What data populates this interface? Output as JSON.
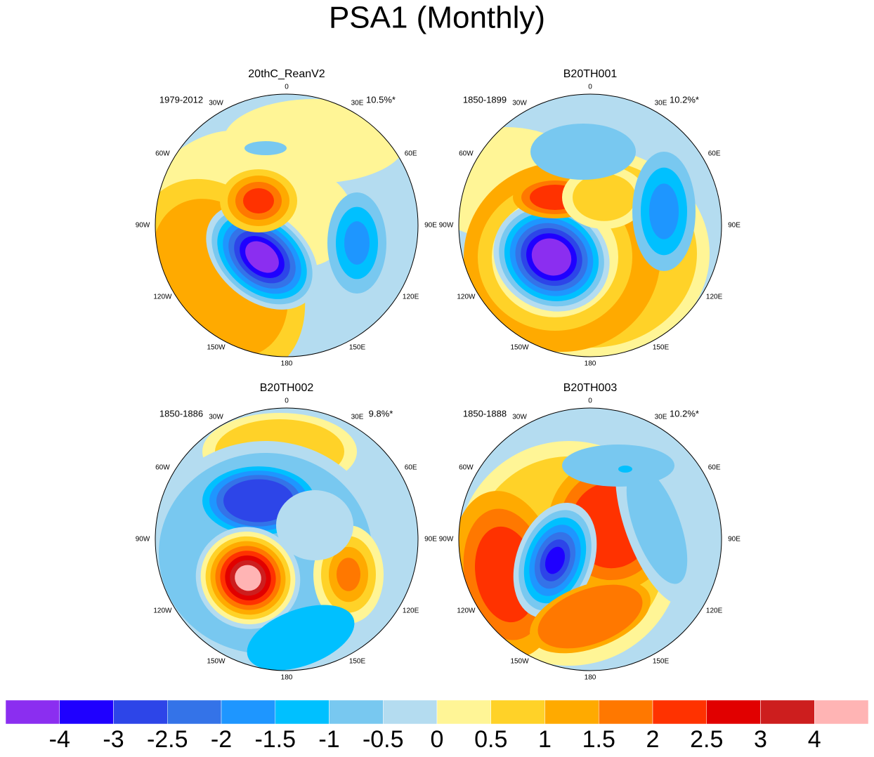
{
  "title": "PSA1 (Monthly)",
  "longitudes": [
    "0",
    "30E",
    "60E",
    "90E",
    "120E",
    "150E",
    "180",
    "150W",
    "120W",
    "90W",
    "60W",
    "30W"
  ],
  "panels": [
    {
      "title": "20thC_ReanV2",
      "period": "1979-2012",
      "variance": "10.5%*"
    },
    {
      "title": "B20TH001",
      "period": "1850-1899",
      "variance": "10.2%*"
    },
    {
      "title": "B20TH002",
      "period": "1850-1886",
      "variance": "9.8%*"
    },
    {
      "title": "B20TH003",
      "period": "1850-1888",
      "variance": "10.2%*"
    }
  ],
  "colorbar": {
    "levels": [
      -4,
      -3,
      -2.5,
      -2,
      -1.5,
      -1,
      -0.5,
      0,
      0.5,
      1,
      1.5,
      2,
      2.5,
      3,
      4
    ],
    "colors": [
      "#8b2ef0",
      "#1f00ff",
      "#2d45e8",
      "#3473e8",
      "#1e96ff",
      "#00c0ff",
      "#78c8f0",
      "#b4dcf0",
      "#fff596",
      "#ffd228",
      "#ffaa00",
      "#ff7800",
      "#ff3200",
      "#e10000",
      "#cd1e1e",
      "#ffb4b4"
    ]
  }
}
